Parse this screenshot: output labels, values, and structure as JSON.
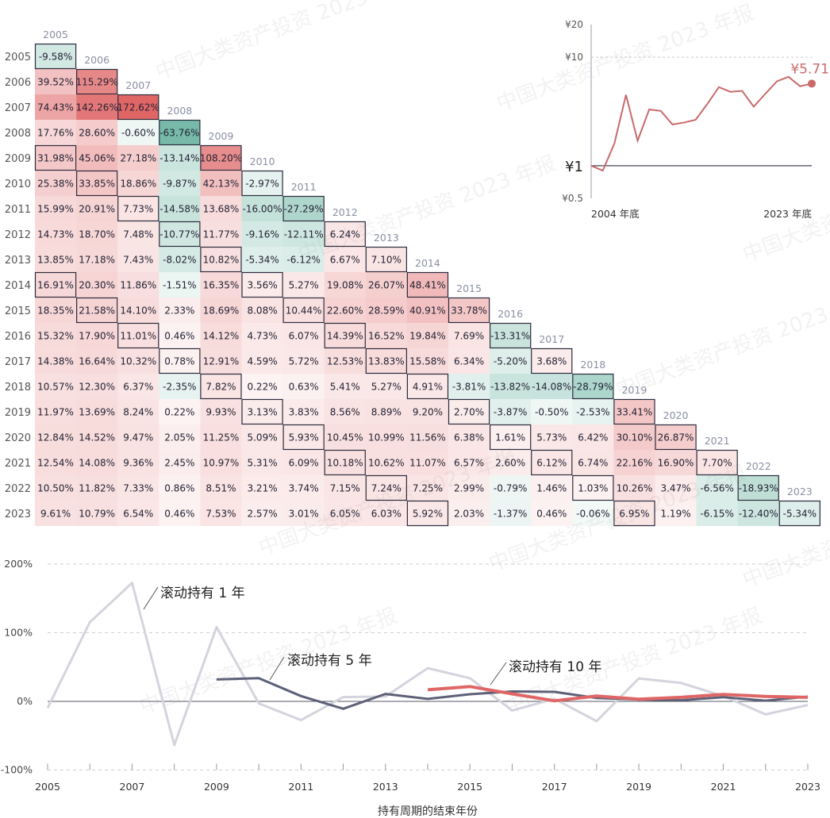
{
  "heatmap": {
    "years": [
      "2005",
      "2006",
      "2007",
      "2008",
      "2009",
      "2010",
      "2011",
      "2012",
      "2013",
      "2014",
      "2015",
      "2016",
      "2017",
      "2018",
      "2019",
      "2020",
      "2021",
      "2022",
      "2023"
    ],
    "rows": [
      [
        "-9.58%"
      ],
      [
        "39.52%",
        "115.29%"
      ],
      [
        "74.43%",
        "142.26%",
        "172.62%"
      ],
      [
        "17.76%",
        "28.60%",
        "-0.60%",
        "-63.76%"
      ],
      [
        "31.98%",
        "45.06%",
        "27.18%",
        "-13.14%",
        "108.20%"
      ],
      [
        "25.38%",
        "33.85%",
        "18.86%",
        "-9.87%",
        "42.13%",
        "-2.97%"
      ],
      [
        "15.99%",
        "20.91%",
        "7.73%",
        "-14.58%",
        "13.68%",
        "-16.00%",
        "-27.29%"
      ],
      [
        "14.73%",
        "18.70%",
        "7.48%",
        "-10.77%",
        "11.77%",
        "-9.16%",
        "-12.11%",
        "6.24%"
      ],
      [
        "13.85%",
        "17.18%",
        "7.43%",
        "-8.02%",
        "10.82%",
        "-5.34%",
        "-6.12%",
        "6.67%",
        "7.10%"
      ],
      [
        "16.91%",
        "20.30%",
        "11.86%",
        "-1.51%",
        "16.35%",
        "3.56%",
        "5.27%",
        "19.08%",
        "26.07%",
        "48.41%"
      ],
      [
        "18.35%",
        "21.58%",
        "14.10%",
        "2.33%",
        "18.69%",
        "8.08%",
        "10.44%",
        "22.60%",
        "28.59%",
        "40.91%",
        "33.78%"
      ],
      [
        "15.32%",
        "17.90%",
        "11.01%",
        "0.46%",
        "14.12%",
        "4.73%",
        "6.07%",
        "14.39%",
        "16.52%",
        "19.84%",
        "7.69%",
        "-13.31%"
      ],
      [
        "14.38%",
        "16.64%",
        "10.32%",
        "0.78%",
        "12.91%",
        "4.59%",
        "5.72%",
        "12.53%",
        "13.83%",
        "15.58%",
        "6.34%",
        "-5.20%",
        "3.68%"
      ],
      [
        "10.57%",
        "12.30%",
        "6.37%",
        "-2.35%",
        "7.82%",
        "0.22%",
        "0.63%",
        "5.41%",
        "5.27%",
        "4.91%",
        "-3.81%",
        "-13.82%",
        "-14.08%",
        "-28.79%"
      ],
      [
        "11.97%",
        "13.69%",
        "8.24%",
        "0.22%",
        "9.93%",
        "3.13%",
        "3.83%",
        "8.56%",
        "8.89%",
        "9.20%",
        "2.70%",
        "-3.87%",
        "-0.50%",
        "-2.53%",
        "33.41%"
      ],
      [
        "12.84%",
        "14.52%",
        "9.47%",
        "2.05%",
        "11.25%",
        "5.09%",
        "5.93%",
        "10.45%",
        "10.99%",
        "11.56%",
        "6.38%",
        "1.61%",
        "5.73%",
        "6.42%",
        "30.10%",
        "26.87%"
      ],
      [
        "12.54%",
        "14.08%",
        "9.36%",
        "2.45%",
        "10.97%",
        "5.31%",
        "6.09%",
        "10.18%",
        "10.62%",
        "11.07%",
        "6.57%",
        "2.60%",
        "6.12%",
        "6.74%",
        "22.16%",
        "16.90%",
        "7.70%"
      ],
      [
        "10.50%",
        "11.82%",
        "7.33%",
        "0.86%",
        "8.51%",
        "3.21%",
        "3.74%",
        "7.15%",
        "7.24%",
        "7.25%",
        "2.99%",
        "-0.79%",
        "1.46%",
        "1.03%",
        "10.26%",
        "3.47%",
        "-6.56%",
        "-18.93%"
      ],
      [
        "9.61%",
        "10.79%",
        "6.54%",
        "0.46%",
        "7.53%",
        "2.57%",
        "3.01%",
        "6.05%",
        "6.03%",
        "5.92%",
        "2.03%",
        "-1.37%",
        "0.46%",
        "-0.06%",
        "6.95%",
        "1.19%",
        "-6.15%",
        "-12.40%",
        "-5.34%"
      ]
    ],
    "boxed": [
      [
        0,
        0
      ],
      [
        1,
        1
      ],
      [
        2,
        2
      ],
      [
        3,
        3
      ],
      [
        4,
        4
      ],
      [
        5,
        5
      ],
      [
        6,
        6
      ],
      [
        7,
        7
      ],
      [
        8,
        8
      ],
      [
        9,
        9
      ],
      [
        10,
        10
      ],
      [
        11,
        11
      ],
      [
        12,
        12
      ],
      [
        13,
        13
      ],
      [
        14,
        14
      ],
      [
        15,
        15
      ],
      [
        16,
        16
      ],
      [
        17,
        17
      ],
      [
        18,
        18
      ],
      [
        4,
        0
      ],
      [
        5,
        1
      ],
      [
        6,
        2
      ],
      [
        7,
        3
      ],
      [
        8,
        4
      ],
      [
        9,
        5
      ],
      [
        10,
        6
      ],
      [
        11,
        7
      ],
      [
        12,
        8
      ],
      [
        13,
        9
      ],
      [
        14,
        10
      ],
      [
        15,
        11
      ],
      [
        16,
        12
      ],
      [
        17,
        13
      ],
      [
        18,
        14
      ],
      [
        9,
        0
      ],
      [
        10,
        1
      ],
      [
        11,
        2
      ],
      [
        12,
        3
      ],
      [
        13,
        4
      ],
      [
        14,
        5
      ],
      [
        15,
        6
      ],
      [
        16,
        7
      ],
      [
        17,
        8
      ],
      [
        18,
        9
      ]
    ],
    "colors": {
      "positive": "#e06666",
      "negative": "#5fae9a",
      "box": "#2b2b3d",
      "text": "#222233",
      "year_label": "#8a8fa3"
    }
  },
  "inset": {
    "y_ticks": [
      "¥20",
      "¥10",
      "¥1",
      "¥0.5"
    ],
    "x_labels": [
      "2004 年底",
      "2023 年底"
    ],
    "end_label": "¥5.71",
    "line_color": "#c96a6a",
    "scale": "log",
    "series_values": [
      1.0,
      0.9,
      1.6,
      4.5,
      1.7,
      3.3,
      3.2,
      2.4,
      2.5,
      2.65,
      3.7,
      5.3,
      4.8,
      4.9,
      3.5,
      4.6,
      6.0,
      6.6,
      5.4,
      5.71
    ]
  },
  "chart_data": {
    "type": "line",
    "x": [
      2005,
      2006,
      2007,
      2008,
      2009,
      2010,
      2011,
      2012,
      2013,
      2014,
      2015,
      2016,
      2017,
      2018,
      2019,
      2020,
      2021,
      2022,
      2023
    ],
    "y_ticks": [
      "200%",
      "100%",
      "0%",
      "-100%"
    ],
    "ylim": [
      -100,
      200
    ],
    "x_tick_labels": [
      "2005",
      "2007",
      "2009",
      "2011",
      "2013",
      "2015",
      "2017",
      "2019",
      "2021",
      "2023"
    ],
    "xlabel": "持有周期的结束年份",
    "series": [
      {
        "name": "滚动持有 1 年",
        "color": "#d4d4de",
        "values": [
          -9.58,
          115.29,
          172.62,
          -63.76,
          108.2,
          -2.97,
          -27.29,
          6.24,
          7.1,
          48.41,
          33.78,
          -13.31,
          3.68,
          -28.79,
          33.41,
          26.87,
          7.7,
          -18.93,
          -5.34
        ]
      },
      {
        "name": "滚动持有 5 年",
        "color": "#5d6178",
        "values": [
          null,
          null,
          null,
          null,
          31.98,
          33.85,
          7.73,
          -10.77,
          10.82,
          3.56,
          10.44,
          14.39,
          13.83,
          4.91,
          2.7,
          1.61,
          6.12,
          1.03,
          6.95
        ]
      },
      {
        "name": "滚动持有 10 年",
        "color": "#e06666",
        "values": [
          null,
          null,
          null,
          null,
          null,
          null,
          null,
          null,
          null,
          16.91,
          21.58,
          11.01,
          0.78,
          7.82,
          3.13,
          5.93,
          10.18,
          7.24,
          5.92
        ]
      }
    ]
  },
  "watermark": "中国大类资产投资 2023 年报"
}
